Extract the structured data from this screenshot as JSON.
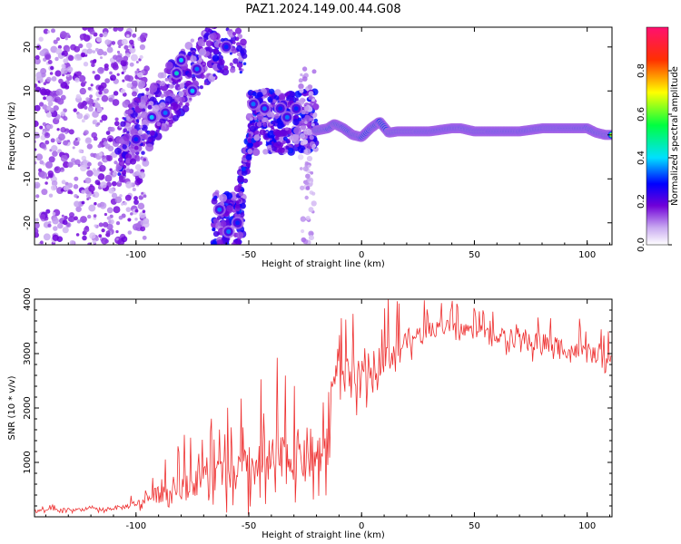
{
  "figure": {
    "title": "PAZ1.2024.149.00.44.G08"
  },
  "chart_data": [
    {
      "type": "heatmap",
      "title": "",
      "xlabel": "Height of straight line (km)",
      "ylabel": "Frequency (Hz)",
      "xlim": [
        -145,
        111
      ],
      "ylim": [
        -25,
        24.5
      ],
      "x_ticks": [
        -100,
        -50,
        0,
        50,
        100
      ],
      "y_ticks": [
        -20,
        -10,
        0,
        10,
        20
      ],
      "colorbar": {
        "label": "Normalized spectral amplitude",
        "range": [
          0,
          1
        ],
        "ticks": [
          0.0,
          0.2,
          0.4,
          0.6,
          0.8
        ],
        "colormap": [
          "#ffffff",
          "#c8a8f0",
          "#7000d8",
          "#0000ff",
          "#00e0ff",
          "#00ff40",
          "#ffff00",
          "#ff3000",
          "#ff1070"
        ]
      },
      "main_tone_track": {
        "x": [
          -20,
          -15,
          -12,
          -8,
          -4,
          0,
          4,
          8,
          12,
          16,
          20,
          30,
          40,
          44,
          50,
          60,
          70,
          80,
          90,
          100,
          104,
          108,
          111
        ],
        "y": [
          1.0,
          1.5,
          2.5,
          1.5,
          0,
          -0.5,
          1.5,
          3.0,
          0.5,
          0.8,
          0.8,
          0.8,
          1.5,
          1.5,
          0.8,
          0.8,
          0.8,
          1.5,
          1.5,
          1.5,
          0.5,
          0.0,
          0.0
        ]
      },
      "bright_blobs": [
        {
          "x": -100,
          "y": -1,
          "a": 0.3
        },
        {
          "x": -93,
          "y": 4,
          "a": 0.4
        },
        {
          "x": -87,
          "y": 5,
          "a": 0.35
        },
        {
          "x": -82,
          "y": 14,
          "a": 0.45
        },
        {
          "x": -80,
          "y": 17,
          "a": 0.4
        },
        {
          "x": -75,
          "y": 10,
          "a": 0.4
        },
        {
          "x": -73,
          "y": 15,
          "a": 0.35
        },
        {
          "x": -60,
          "y": 20,
          "a": 0.3
        },
        {
          "x": -63,
          "y": -17,
          "a": 0.35
        },
        {
          "x": -59,
          "y": -22,
          "a": 0.35
        },
        {
          "x": -55,
          "y": -20,
          "a": 0.3
        },
        {
          "x": -48,
          "y": 7,
          "a": 0.35
        },
        {
          "x": -43,
          "y": 6,
          "a": 0.35
        },
        {
          "x": -36,
          "y": 6,
          "a": 0.3
        },
        {
          "x": -33,
          "y": 4,
          "a": 0.35
        },
        {
          "x": -29,
          "y": 6,
          "a": 0.3
        }
      ]
    },
    {
      "type": "line",
      "title": "",
      "xlabel": "Height of straight line (km)",
      "ylabel": "SNR (10 * v/v)",
      "xlim": [
        -145,
        111
      ],
      "ylim": [
        0,
        4000
      ],
      "x_ticks": [
        -100,
        -50,
        0,
        50,
        100
      ],
      "y_ticks": [
        1000,
        2000,
        3000,
        4000
      ],
      "series": [
        {
          "color": "#ee3030",
          "x": [
            -145,
            -130,
            -115,
            -105,
            -100,
            -95,
            -90,
            -80,
            -70,
            -60,
            -50,
            -45,
            -40,
            -35,
            -30,
            -25,
            -22,
            -18,
            -15,
            -12,
            -11,
            -8,
            -5,
            0,
            5,
            10,
            15,
            20,
            25,
            30,
            35,
            40,
            45,
            50,
            55,
            60,
            65,
            70,
            75,
            80,
            85,
            90,
            95,
            100,
            105,
            111
          ],
          "y": [
            120,
            130,
            140,
            180,
            250,
            320,
            420,
            560,
            700,
            800,
            900,
            960,
            1000,
            1050,
            1100,
            1150,
            1150,
            1200,
            1250,
            2600,
            2750,
            2650,
            2450,
            2550,
            2750,
            2950,
            3050,
            3250,
            3350,
            3400,
            3500,
            3500,
            3480,
            3420,
            3380,
            3330,
            3300,
            3280,
            3250,
            3200,
            3160,
            3100,
            3050,
            3000,
            2950,
            2900
          ],
          "noise_amplitude": [
            60,
            70,
            80,
            110,
            160,
            260,
            420,
            600,
            700,
            800,
            1000,
            1100,
            1200,
            1200,
            1200,
            1300,
            1200,
            1000,
            1000,
            700,
            600,
            800,
            900,
            900,
            800,
            700,
            600,
            500,
            450,
            400,
            350,
            300,
            280,
            280,
            300,
            350,
            400,
            500,
            500,
            550,
            500,
            450,
            400,
            400,
            350,
            300
          ]
        }
      ]
    }
  ]
}
